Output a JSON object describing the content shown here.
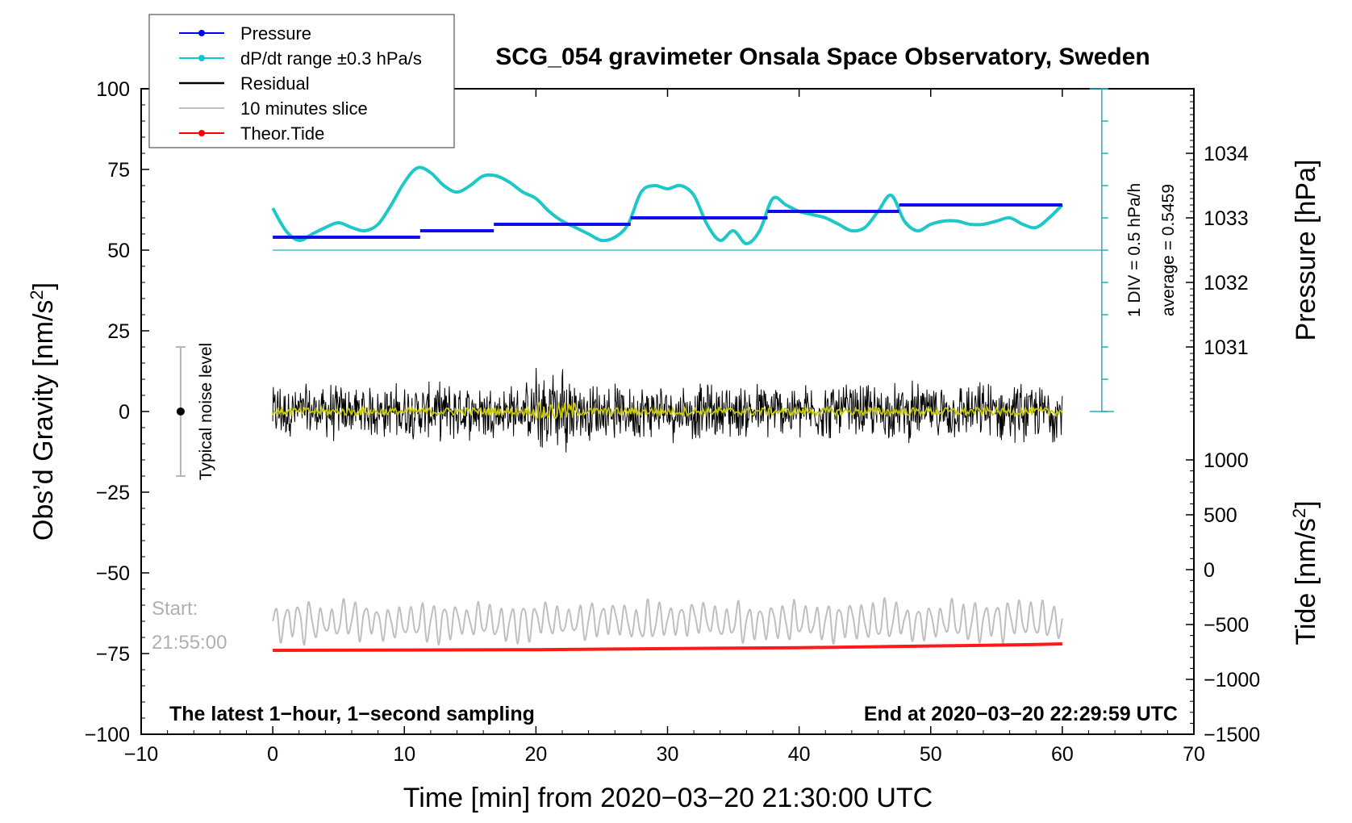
{
  "chart_data": {
    "type": "line",
    "title": "SCG_054 gravimeter Onsala Space Observatory, Sweden",
    "xlabel": "Time [min] from 2020−03−20 21:30:00 UTC",
    "ylabel": "Obs’d Gravity [nm/s²]",
    "ylabel_main": "Obs’d Gravity [nm/s",
    "ylabel_sup": "2",
    "ylabel_close": "]",
    "xlim": [
      -10,
      70
    ],
    "ylim": [
      -100,
      100
    ],
    "x_ticks": [
      "−10",
      "0",
      "10",
      "20",
      "30",
      "40",
      "50",
      "60",
      "70"
    ],
    "y_ticks": [
      "100",
      "75",
      "50",
      "25",
      "0",
      "−25",
      "−50",
      "−75",
      "−100"
    ],
    "pressure_axis": {
      "label": "Pressure [hPa]",
      "ticks": [
        "1034",
        "1033",
        "1032",
        "1031"
      ],
      "range": [
        1030,
        1035
      ]
    },
    "tide_axis": {
      "label_main": "Tide [nm/s",
      "label_sup": "2",
      "label_close": "]",
      "ticks": [
        "1000",
        "500",
        "0",
        "−500",
        "−1000",
        "−1500"
      ],
      "range": [
        -1500,
        1000
      ]
    },
    "legend": [
      {
        "label": "Pressure",
        "color": "#0000ff",
        "marker": true
      },
      {
        "label": "dP/dt range ±0.3 hPa/s",
        "color": "#00cccc",
        "marker": true
      },
      {
        "label": "Residual",
        "color": "#000000",
        "marker": false
      },
      {
        "label": "10 minutes slice",
        "color": "#bfbfbf",
        "marker": false
      },
      {
        "label": "Theor.Tide",
        "color": "#ff0000",
        "marker": true
      }
    ],
    "pressure_steps": [
      {
        "x0": 0,
        "x1": 11.2,
        "y": 54
      },
      {
        "x0": 11.2,
        "x1": 16.8,
        "y": 56
      },
      {
        "x0": 16.8,
        "x1": 27.2,
        "y": 58
      },
      {
        "x0": 27.2,
        "x1": 37.6,
        "y": 60
      },
      {
        "x0": 37.6,
        "x1": 47.6,
        "y": 62
      },
      {
        "x0": 47.6,
        "x1": 60,
        "y": 64
      }
    ],
    "dpdt_curve": {
      "x": [
        0,
        1,
        2,
        3,
        4,
        5,
        6,
        7,
        8,
        9,
        10,
        11,
        12,
        13,
        14,
        15,
        16,
        17,
        18,
        19,
        20,
        21,
        22,
        23,
        24,
        25,
        26,
        27,
        28,
        29,
        30,
        31,
        32,
        33,
        34,
        35,
        36,
        37,
        38,
        39,
        40,
        41,
        42,
        43,
        44,
        45,
        46,
        47,
        48,
        49,
        50,
        51,
        52,
        53,
        54,
        55,
        56,
        57,
        58,
        59,
        60
      ],
      "y": [
        63,
        56,
        53,
        55,
        57,
        58.5,
        57,
        56,
        58,
        64,
        71,
        75.5,
        74,
        70,
        68,
        70,
        73,
        73,
        71,
        68,
        66,
        62,
        59,
        57,
        55,
        53,
        54,
        58,
        68,
        70,
        69,
        70,
        67,
        58,
        53,
        56,
        52,
        56,
        66,
        64,
        62,
        61,
        60,
        58,
        56,
        57,
        62,
        67,
        59,
        56,
        58,
        59,
        59,
        58,
        58,
        59,
        60,
        58,
        57,
        60,
        64
      ]
    },
    "dpdt_baseline": 50,
    "dpdt_scale": {
      "top": 100,
      "bottom": 0,
      "divisions": 10
    },
    "scale_note": "1 DIV = 0.5 hPa/h",
    "average_note": "average = 0.5459",
    "residual": {
      "center": 0,
      "amplitude": 10,
      "burst_x": [
        20,
        23
      ],
      "burst_amplitude": 15
    },
    "slice": {
      "center": -65,
      "amplitude": 7
    },
    "tide": {
      "x": [
        0,
        20,
        32,
        40,
        47,
        53,
        58,
        60
      ],
      "y": [
        -74,
        -73.8,
        -73.4,
        -73.2,
        -72.8,
        -72.5,
        -72.2,
        -72
      ]
    },
    "noise_level": {
      "x": -7,
      "y": 0,
      "upper": 20,
      "lower": -20,
      "label": "Typical noise level"
    },
    "start_label": "Start:",
    "start_time": "21:55:00",
    "bottom_left_note": "The latest 1−hour, 1−second sampling",
    "bottom_right_note": "End at 2020−03−20 22:29:59 UTC"
  }
}
